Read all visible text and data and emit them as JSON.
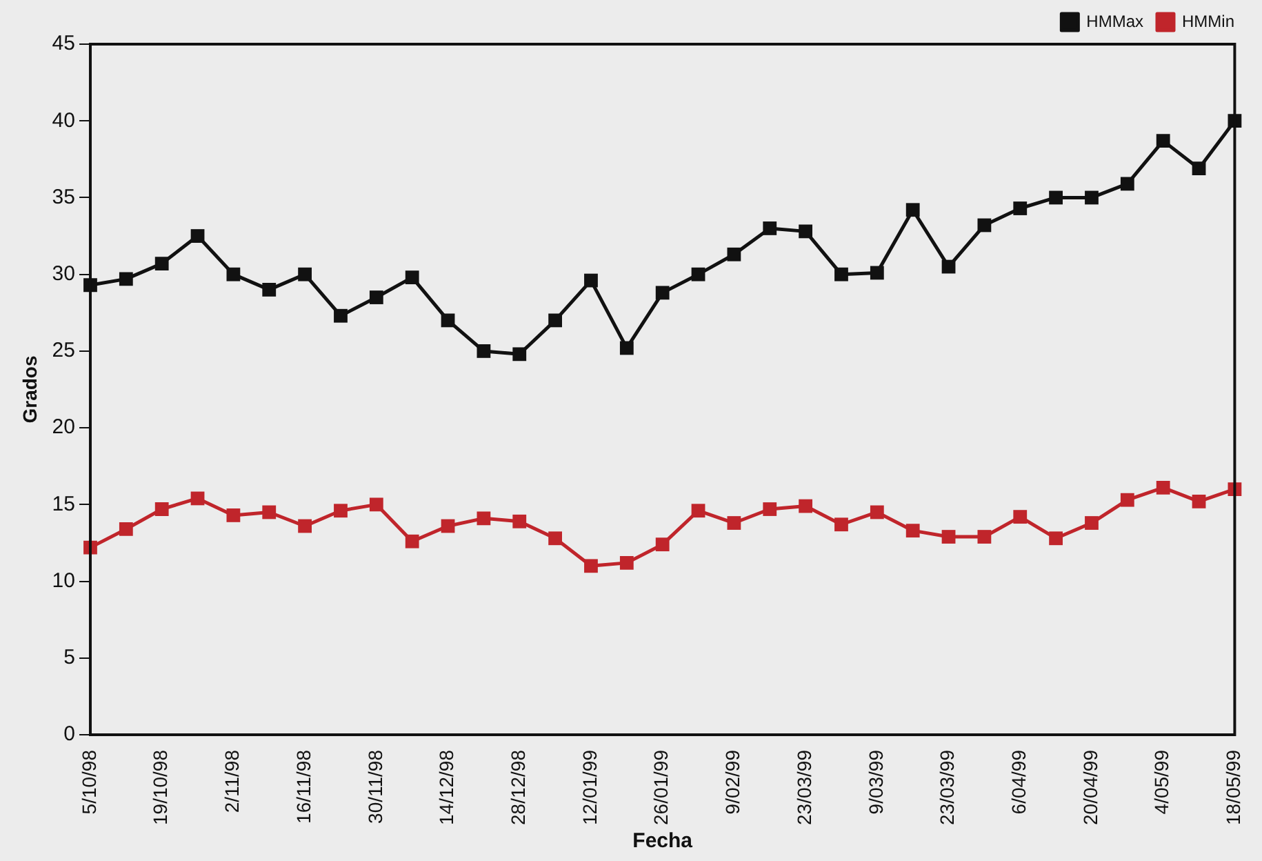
{
  "chart_data": {
    "type": "line",
    "xlabel": "Fecha",
    "ylabel": "Grados",
    "categories": [
      "5/10/98",
      null,
      "19/10/98",
      null,
      "2/11/98",
      null,
      "16/11/98",
      null,
      "30/11/98",
      null,
      "14/12/98",
      null,
      "28/12/98",
      null,
      "12/01/99",
      null,
      "26/01/99",
      null,
      "9/02/99",
      null,
      "23/03/99",
      null,
      "9/03/99",
      null,
      "23/03/99",
      null,
      "6/04/99",
      null,
      "20/04/99",
      null,
      "4/05/99",
      null,
      "18/05/99"
    ],
    "series": [
      {
        "name": "HMMax",
        "color": "#111111",
        "values": [
          29.3,
          29.7,
          30.7,
          32.5,
          30,
          29,
          30,
          27.3,
          28.5,
          29.8,
          27,
          25,
          24.8,
          27,
          29.6,
          25.2,
          28.8,
          30,
          31.3,
          33,
          32.8,
          30,
          30.1,
          34.2,
          30.5,
          33.2,
          34.3,
          35,
          35,
          35.9,
          38.7,
          36.9,
          40
        ]
      },
      {
        "name": "HMMin",
        "color": "#c0252b",
        "values": [
          12.2,
          13.4,
          14.7,
          15.4,
          14.3,
          14.5,
          13.6,
          14.6,
          15,
          12.6,
          13.6,
          14.1,
          13.9,
          12.8,
          11,
          11.2,
          12.4,
          14.6,
          13.8,
          14.7,
          14.9,
          13.7,
          14.5,
          13.3,
          12.9,
          12.9,
          14.2,
          12.8,
          13.8,
          15.3,
          16.1,
          15.2,
          16
        ]
      }
    ],
    "ylim": [
      0,
      45
    ],
    "yticks": [
      0,
      5,
      10,
      15,
      20,
      25,
      30,
      35,
      40,
      45
    ],
    "grid": false,
    "legend": "top right",
    "marker": "square",
    "line_style": "solid"
  }
}
